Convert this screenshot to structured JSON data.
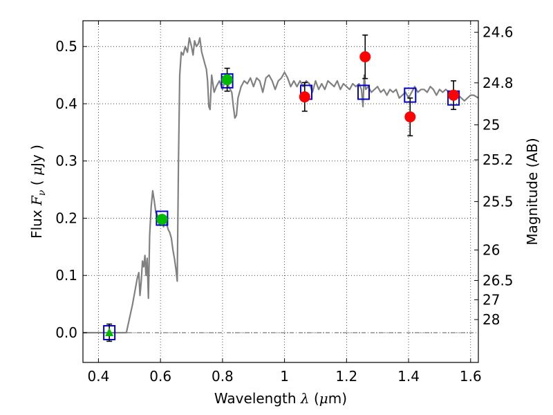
{
  "chart_data": {
    "type": "scatter",
    "title": "",
    "xlabel": {
      "prefix": "Wavelength  ",
      "symbol": "λ",
      "mid": " (",
      "unit_symbol": "μ",
      "suffix": "m)"
    },
    "ylabel": {
      "prefix": "Flux  ",
      "symbol": "F",
      "subscript": "ν",
      "mid": "  ( ",
      "unit_symbol": "μ",
      "suffix": "Jy )"
    },
    "y2label": "Magnitude (AB)",
    "xlim": [
      0.35,
      1.625
    ],
    "ylim": [
      -0.052,
      0.545
    ],
    "grid": true,
    "xticks": [
      {
        "value": 0.4,
        "label": "0.4"
      },
      {
        "value": 0.6,
        "label": "0.6"
      },
      {
        "value": 0.8,
        "label": "0.8"
      },
      {
        "value": 1.0,
        "label": "1"
      },
      {
        "value": 1.2,
        "label": "1.2"
      },
      {
        "value": 1.4,
        "label": "1.4"
      },
      {
        "value": 1.6,
        "label": "1.6"
      }
    ],
    "yticks": [
      {
        "value": 0.0,
        "label": "0.0"
      },
      {
        "value": 0.1,
        "label": "0.1"
      },
      {
        "value": 0.2,
        "label": "0.2"
      },
      {
        "value": 0.3,
        "label": "0.3"
      },
      {
        "value": 0.4,
        "label": "0.4"
      },
      {
        "value": 0.5,
        "label": "0.5"
      }
    ],
    "mag_ticks": [
      {
        "label": "24.6",
        "flux": 0.5248
      },
      {
        "label": "24.8",
        "flux": 0.4365
      },
      {
        "label": "25",
        "flux": 0.3631
      },
      {
        "label": "25.2",
        "flux": 0.302
      },
      {
        "label": "25.5",
        "flux": 0.2291
      },
      {
        "label": "26",
        "flux": 0.1445
      },
      {
        "label": "26.5",
        "flux": 0.0912
      },
      {
        "label": "27",
        "flux": 0.0575
      },
      {
        "label": "28",
        "flux": 0.0229
      }
    ],
    "series": [
      {
        "kind": "model-spectrum",
        "color": "#808080",
        "points": [
          [
            0.35,
            0.0
          ],
          [
            0.48,
            0.0
          ],
          [
            0.49,
            0.0
          ],
          [
            0.5,
            0.025
          ],
          [
            0.51,
            0.05
          ],
          [
            0.52,
            0.08
          ],
          [
            0.525,
            0.095
          ],
          [
            0.53,
            0.105
          ],
          [
            0.534,
            0.065
          ],
          [
            0.538,
            0.09
          ],
          [
            0.542,
            0.125
          ],
          [
            0.546,
            0.115
          ],
          [
            0.55,
            0.135
          ],
          [
            0.553,
            0.1
          ],
          [
            0.557,
            0.13
          ],
          [
            0.561,
            0.06
          ],
          [
            0.565,
            0.17
          ],
          [
            0.57,
            0.22
          ],
          [
            0.575,
            0.248
          ],
          [
            0.58,
            0.23
          ],
          [
            0.585,
            0.21
          ],
          [
            0.59,
            0.205
          ],
          [
            0.595,
            0.19
          ],
          [
            0.6,
            0.2
          ],
          [
            0.605,
            0.195
          ],
          [
            0.61,
            0.185
          ],
          [
            0.615,
            0.2
          ],
          [
            0.62,
            0.19
          ],
          [
            0.625,
            0.18
          ],
          [
            0.63,
            0.175
          ],
          [
            0.635,
            0.165
          ],
          [
            0.64,
            0.145
          ],
          [
            0.645,
            0.13
          ],
          [
            0.65,
            0.11
          ],
          [
            0.654,
            0.09
          ],
          [
            0.658,
            0.3
          ],
          [
            0.662,
            0.45
          ],
          [
            0.667,
            0.49
          ],
          [
            0.673,
            0.485
          ],
          [
            0.68,
            0.5
          ],
          [
            0.687,
            0.49
          ],
          [
            0.693,
            0.515
          ],
          [
            0.7,
            0.5
          ],
          [
            0.705,
            0.485
          ],
          [
            0.71,
            0.51
          ],
          [
            0.716,
            0.5
          ],
          [
            0.722,
            0.505
          ],
          [
            0.727,
            0.515
          ],
          [
            0.733,
            0.49
          ],
          [
            0.738,
            0.48
          ],
          [
            0.743,
            0.47
          ],
          [
            0.748,
            0.46
          ],
          [
            0.752,
            0.44
          ],
          [
            0.756,
            0.395
          ],
          [
            0.76,
            0.39
          ],
          [
            0.765,
            0.45
          ],
          [
            0.773,
            0.42
          ],
          [
            0.78,
            0.43
          ],
          [
            0.79,
            0.44
          ],
          [
            0.8,
            0.425
          ],
          [
            0.81,
            0.445
          ],
          [
            0.82,
            0.43
          ],
          [
            0.83,
            0.42
          ],
          [
            0.835,
            0.395
          ],
          [
            0.84,
            0.375
          ],
          [
            0.845,
            0.38
          ],
          [
            0.85,
            0.41
          ],
          [
            0.86,
            0.43
          ],
          [
            0.87,
            0.44
          ],
          [
            0.88,
            0.435
          ],
          [
            0.89,
            0.445
          ],
          [
            0.9,
            0.43
          ],
          [
            0.91,
            0.445
          ],
          [
            0.92,
            0.44
          ],
          [
            0.93,
            0.42
          ],
          [
            0.94,
            0.445
          ],
          [
            0.95,
            0.45
          ],
          [
            0.96,
            0.44
          ],
          [
            0.97,
            0.425
          ],
          [
            0.98,
            0.44
          ],
          [
            0.99,
            0.445
          ],
          [
            1.0,
            0.455
          ],
          [
            1.01,
            0.445
          ],
          [
            1.02,
            0.43
          ],
          [
            1.03,
            0.44
          ],
          [
            1.04,
            0.43
          ],
          [
            1.05,
            0.44
          ],
          [
            1.06,
            0.43
          ],
          [
            1.07,
            0.44
          ],
          [
            1.08,
            0.435
          ],
          [
            1.09,
            0.42
          ],
          [
            1.1,
            0.44
          ],
          [
            1.11,
            0.425
          ],
          [
            1.12,
            0.435
          ],
          [
            1.13,
            0.425
          ],
          [
            1.14,
            0.44
          ],
          [
            1.15,
            0.435
          ],
          [
            1.16,
            0.43
          ],
          [
            1.17,
            0.44
          ],
          [
            1.18,
            0.425
          ],
          [
            1.19,
            0.435
          ],
          [
            1.2,
            0.43
          ],
          [
            1.21,
            0.425
          ],
          [
            1.22,
            0.435
          ],
          [
            1.23,
            0.43
          ],
          [
            1.24,
            0.435
          ],
          [
            1.248,
            0.425
          ],
          [
            1.253,
            0.395
          ],
          [
            1.257,
            0.45
          ],
          [
            1.262,
            0.425
          ],
          [
            1.27,
            0.43
          ],
          [
            1.28,
            0.42
          ],
          [
            1.29,
            0.425
          ],
          [
            1.3,
            0.43
          ],
          [
            1.31,
            0.42
          ],
          [
            1.32,
            0.425
          ],
          [
            1.33,
            0.415
          ],
          [
            1.34,
            0.425
          ],
          [
            1.35,
            0.42
          ],
          [
            1.36,
            0.425
          ],
          [
            1.37,
            0.41
          ],
          [
            1.38,
            0.415
          ],
          [
            1.39,
            0.42
          ],
          [
            1.4,
            0.41
          ],
          [
            1.41,
            0.42
          ],
          [
            1.42,
            0.43
          ],
          [
            1.43,
            0.42
          ],
          [
            1.44,
            0.425
          ],
          [
            1.45,
            0.425
          ],
          [
            1.46,
            0.42
          ],
          [
            1.47,
            0.43
          ],
          [
            1.48,
            0.425
          ],
          [
            1.49,
            0.415
          ],
          [
            1.5,
            0.425
          ],
          [
            1.51,
            0.42
          ],
          [
            1.52,
            0.425
          ],
          [
            1.53,
            0.42
          ],
          [
            1.54,
            0.41
          ],
          [
            1.55,
            0.42
          ],
          [
            1.56,
            0.415
          ],
          [
            1.57,
            0.41
          ],
          [
            1.58,
            0.405
          ],
          [
            1.59,
            0.41
          ],
          [
            1.6,
            0.415
          ],
          [
            1.61,
            0.415
          ],
          [
            1.625,
            0.41
          ]
        ]
      },
      {
        "kind": "model-photometry",
        "marker": "open-square",
        "color": "#0000cc",
        "points": [
          [
            0.435,
            0.0
          ],
          [
            0.605,
            0.2
          ],
          [
            0.815,
            0.44
          ],
          [
            1.07,
            0.42
          ],
          [
            1.255,
            0.42
          ],
          [
            1.405,
            0.415
          ],
          [
            1.545,
            0.41
          ]
        ]
      },
      {
        "kind": "observed",
        "marker": "circle",
        "color": "#00bb00",
        "points": [
          [
            0.605,
            0.198,
            null
          ],
          [
            0.815,
            0.442,
            0.02
          ]
        ]
      },
      {
        "kind": "observed",
        "marker": "circle",
        "color": "#ff0000",
        "points": [
          [
            1.065,
            0.412,
            0.025
          ],
          [
            1.26,
            0.482,
            0.038
          ],
          [
            1.405,
            0.377,
            0.033
          ],
          [
            1.545,
            0.415,
            0.025
          ]
        ]
      },
      {
        "kind": "upper-limit",
        "marker": "triangle",
        "color": "#00bb00",
        "points": [
          [
            0.435,
            0.0,
            0.015
          ]
        ]
      }
    ]
  }
}
